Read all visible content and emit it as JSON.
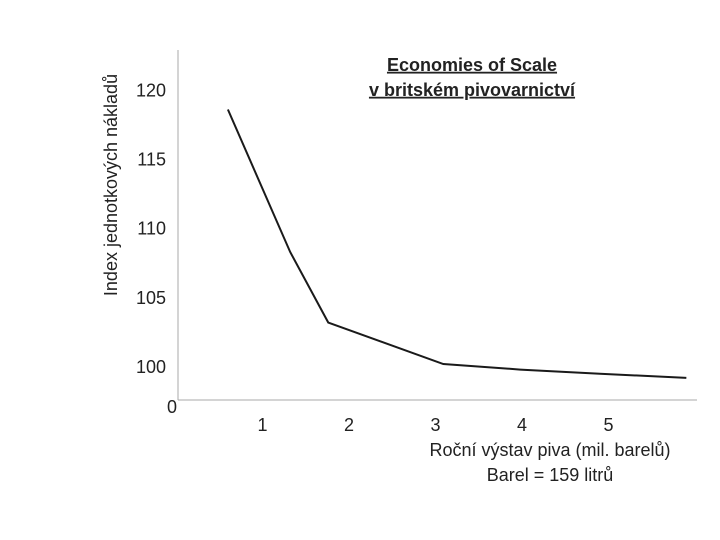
{
  "chart_data": {
    "type": "line",
    "title": "Economies of Scale",
    "subtitle": "v britském pivovarnictví",
    "y_label": "Index jednotkových nákladů",
    "x_label": "Roční výstav piva (mil. barelů)",
    "x_note": "Barel = 159 litrů",
    "origin_label": "0",
    "xlim": [
      0,
      6
    ],
    "xticks": [
      1,
      2,
      3,
      4,
      5
    ],
    "ylim": [
      97.7,
      123
    ],
    "yticks": [
      100,
      105,
      110,
      115,
      120
    ],
    "x": [
      0.6,
      1.32,
      1.76,
      3.09,
      3.98,
      4.9,
      5.9
    ],
    "values": [
      118.7,
      108.4,
      103.3,
      100.3,
      99.9,
      99.6,
      99.3
    ],
    "color": "#1a1a1a"
  }
}
